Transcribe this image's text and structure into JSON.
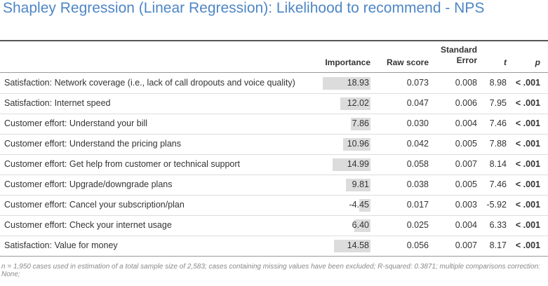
{
  "title": "Shapley Regression (Linear Regression): Likelihood to recommend - NPS",
  "table": {
    "columns": [
      "Importance",
      "Raw score",
      "Standard Error",
      "t",
      "p"
    ],
    "rows": [
      [
        "Satisfaction: Network coverage (i.e., lack of call dropouts and voice quality)",
        "18.93",
        "0.073",
        "0.008",
        "8.98",
        "< .001"
      ],
      [
        "Satisfaction: Internet speed",
        "12.02",
        "0.047",
        "0.006",
        "7.95",
        "< .001"
      ],
      [
        "Customer effort: Understand your bill",
        "7.86",
        "0.030",
        "0.004",
        "7.46",
        "< .001"
      ],
      [
        "Customer effort: Understand the pricing plans",
        "10.96",
        "0.042",
        "0.005",
        "7.88",
        "< .001"
      ],
      [
        "Customer effort: Get help from customer or technical support",
        "14.99",
        "0.058",
        "0.007",
        "8.14",
        "< .001"
      ],
      [
        "Customer effort: Upgrade/downgrade plans",
        "9.81",
        "0.038",
        "0.005",
        "7.46",
        "< .001"
      ],
      [
        "Customer effort: Cancel your subscription/plan",
        "-4.45",
        "0.017",
        "0.003",
        "-5.92",
        "< .001"
      ],
      [
        "Customer effort: Check your internet usage",
        "6.40",
        "0.025",
        "0.004",
        "6.33",
        "< .001"
      ],
      [
        "Satisfaction: Value for money",
        "14.58",
        "0.056",
        "0.007",
        "8.17",
        "< .001"
      ]
    ]
  },
  "footer": "n = 1,950 cases used in estimation of a total sample size of 2,583; cases containing missing values have been excluded; R-squared: 0.3871; multiple comparisons correction: None;"
}
